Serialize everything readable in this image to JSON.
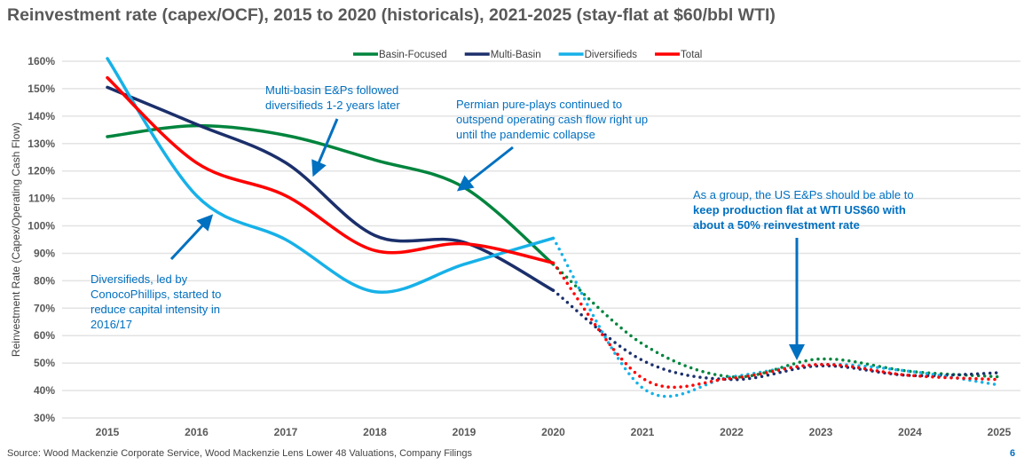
{
  "title": "Reinvestment rate (capex/OCF), 2015 to 2020 (historicals), 2021-2025 (stay-flat at $60/bbl WTI)",
  "source": "Source: Wood Mackenzie Corporate Service, Wood Mackenzie Lens Lower 48 Valuations, Company Filings",
  "page_number": "6",
  "annotations": {
    "multi_basin": "Multi-basin E&Ps followed diversifieds 1-2 years later",
    "permian": "Permian pure-plays continued to outspend operating cash flow right up until the pandemic collapse",
    "group_prefix": "As a group, the US E&Ps should be able to ",
    "group_bold": "keep production flat at WTI US$60 with about a 50% reinvestment rate",
    "diversifieds": "Diversifieds, led by ConocoPhillips, started to reduce capital intensity in 2016/17"
  },
  "chart_data": {
    "type": "line",
    "title": "Reinvestment rate (capex/OCF), 2015 to 2020 (historicals), 2021-2025 (stay-flat at $60/bbl WTI)",
    "xlabel": "",
    "ylabel": "Reinvestment Rate (Capex/Operating Cash Flow)",
    "categories": [
      "2015",
      "2016",
      "2017",
      "2018",
      "2019",
      "2020",
      "2021",
      "2022",
      "2023",
      "2024",
      "2025"
    ],
    "yticks": [
      "30%",
      "40%",
      "50%",
      "60%",
      "70%",
      "80%",
      "90%",
      "100%",
      "110%",
      "120%",
      "130%",
      "140%",
      "150%",
      "160%"
    ],
    "ylim": [
      30,
      160
    ],
    "grid": true,
    "legend": "top",
    "historical_through": "2020",
    "forecast_style": "dotted",
    "series": [
      {
        "name": "Basin-Focused",
        "color": "#00843d",
        "values": [
          132.5,
          136.5,
          133,
          124,
          114,
          86,
          57,
          45,
          51.5,
          47,
          45
        ]
      },
      {
        "name": "Multi-Basin",
        "color": "#1b2f6b",
        "values": [
          150.5,
          137,
          123,
          96.5,
          94,
          76.5,
          51,
          44,
          49,
          45.5,
          46.5
        ]
      },
      {
        "name": "Diversifieds",
        "color": "#17b1e8",
        "values": [
          161,
          111,
          95,
          76,
          86,
          95.5,
          41,
          45,
          49.5,
          47,
          42
        ]
      },
      {
        "name": "Total",
        "color": "#ff0000",
        "values": [
          154,
          123,
          111,
          91,
          93.5,
          86.5,
          44.5,
          44.5,
          49.5,
          45.5,
          44
        ]
      }
    ]
  }
}
